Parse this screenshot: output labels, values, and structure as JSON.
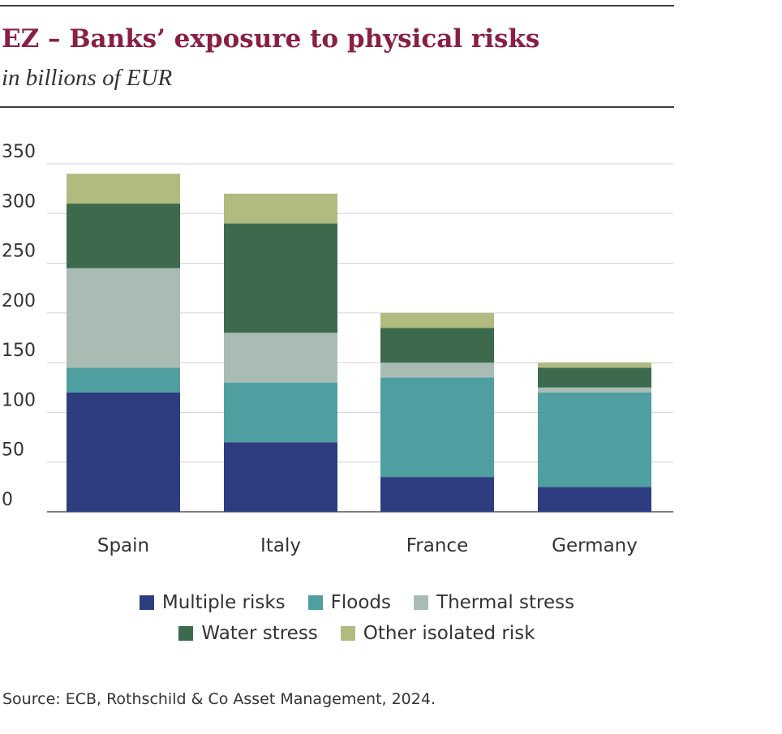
{
  "header": {
    "title": "EZ – Banks’ exposure to physical risks",
    "subtitle": "in billions of EUR"
  },
  "source": "Source: ECB, Rothschild & Co Asset Management, 2024.",
  "chart_data": {
    "type": "bar",
    "stacked": true,
    "categories": [
      "Spain",
      "Italy",
      "France",
      "Germany"
    ],
    "series": [
      {
        "name": "Multiple risks",
        "color": "#2e3d80",
        "values": [
          120,
          70,
          35,
          25
        ]
      },
      {
        "name": "Floods",
        "color": "#4f9fa1",
        "values": [
          25,
          60,
          100,
          95
        ]
      },
      {
        "name": "Thermal stress",
        "color": "#a9bcb4",
        "values": [
          100,
          50,
          15,
          5
        ]
      },
      {
        "name": "Water stress",
        "color": "#3d6a4d",
        "values": [
          65,
          110,
          35,
          20
        ]
      },
      {
        "name": "Other isolated risk",
        "color": "#b1bb7f",
        "values": [
          30,
          30,
          15,
          5
        ]
      }
    ],
    "yticks": [
      "0",
      "50",
      "100",
      "150",
      "200",
      "250",
      "300",
      "350"
    ],
    "ylim": [
      0,
      350
    ],
    "grid": true,
    "legend_position": "bottom"
  }
}
